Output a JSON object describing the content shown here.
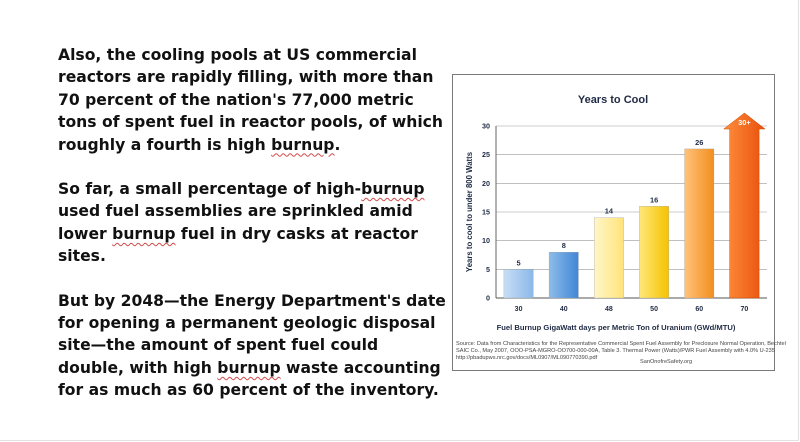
{
  "text": {
    "p1_before": "Also, the cooling pools at US commercial reactors are rapidly filling, with more than 70 percent of the nation's 77,000 metric tons of spent fuel in reactor pools, of which roughly a fourth is high ",
    "p1_flagged": "burnup",
    "p1_after": ".",
    "p2_a": "So far, a small percentage of high-",
    "p2_flagged1": "burnup",
    "p2_b": " used fuel assemblies are sprinkled amid lower ",
    "p2_flagged2": "burnup",
    "p2_c": " fuel in dry casks at reactor sites.",
    "p3_a": "But by 2048—the Energy Department's date for opening a permanent geologic disposal site—the amount of spent fuel could double, with high ",
    "p3_flagged": "burnup",
    "p3_b": " waste accounting for as much as 60 percent of the inventory."
  },
  "chart_data": {
    "type": "bar",
    "title": "Years to Cool",
    "xlabel": "Fuel Burnup GigaWatt days per Metric Ton of Uranium (GWd/MTU)",
    "ylabel": "Years to cool to under 800 Watts",
    "categories": [
      "30",
      "40",
      "48",
      "50",
      "60",
      "70"
    ],
    "values": [
      5,
      8,
      14,
      16,
      26,
      30
    ],
    "data_labels": [
      "5",
      "8",
      "14",
      "16",
      "26",
      "30+"
    ],
    "ylim": [
      0,
      30
    ],
    "yticks": [
      "0",
      "5",
      "10",
      "15",
      "20",
      "25",
      "30"
    ],
    "grid": true,
    "bar_colors": [
      "#9ec6ee",
      "#5b9ee4",
      "#ffeb9a",
      "#ffd21c",
      "#f7a33f",
      "#f45f0a"
    ],
    "last_bar_arrow": true,
    "source_lines": [
      "Source: Data from Characteristics for the Representative Commercial Spent Fuel Assembly for Preclosure Normal Operation, Bechtel",
      "SAIC Co., May 2007, OOO-PSA-MGRO-OO700-000-00A, Table 3. Thermal Power (Watts)/PWR Fuel Assembly with 4.0% U-235",
      "http://pbadupws.nrc.gov/docs/ML0907/ML090770390.pdf"
    ],
    "credit": "SanOnofreSafety.org"
  }
}
